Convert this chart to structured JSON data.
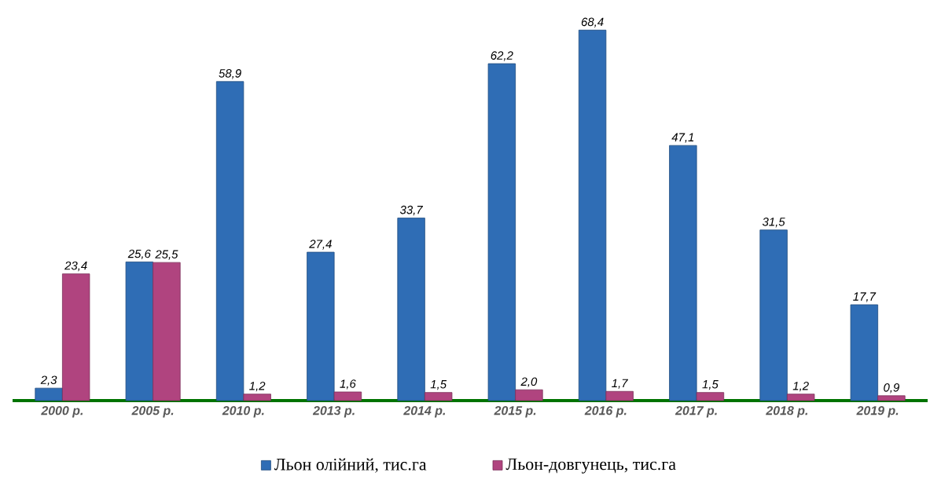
{
  "chart_data": {
    "type": "bar",
    "categories": [
      "2000 р.",
      "2005 р.",
      "2010 р.",
      "2013 р.",
      "2014 р.",
      "2015 р.",
      "2016 р.",
      "2017 р.",
      "2018 р.",
      "2019 р."
    ],
    "series": [
      {
        "name": "Льон олійний, тис.га",
        "color": "#2f6db5",
        "values": [
          2.3,
          25.6,
          58.9,
          27.4,
          33.7,
          62.2,
          68.4,
          47.1,
          31.5,
          17.7
        ],
        "value_labels": [
          "2,3",
          "25,6",
          "58,9",
          "27,4",
          "33,7",
          "62,2",
          "68,4",
          "47,1",
          "31,5",
          "17,7"
        ]
      },
      {
        "name": "Льон-довгунець, тис.га",
        "color": "#b0447f",
        "values": [
          23.4,
          25.5,
          1.2,
          1.6,
          1.5,
          2.0,
          1.7,
          1.5,
          1.2,
          0.9
        ],
        "value_labels": [
          "23,4",
          "25,5",
          "1,2",
          "1,6",
          "1,5",
          "2,0",
          "1,7",
          "1,5",
          "1,2",
          "0,9"
        ]
      }
    ],
    "legend": "bottom",
    "grid": false
  }
}
